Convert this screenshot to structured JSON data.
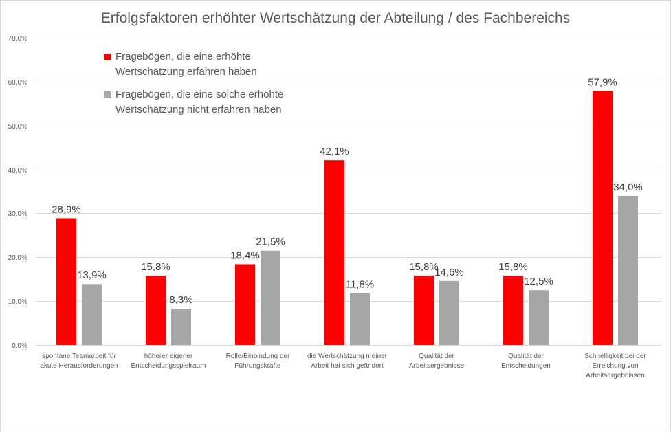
{
  "chart_data": {
    "type": "bar",
    "title": "Erfolgsfaktoren erhöhter Wertschätzung der Abteilung / des Fachbereichs",
    "xlabel": "",
    "ylabel": "",
    "ylim": [
      0,
      70
    ],
    "yticks": [
      0,
      10,
      20,
      30,
      40,
      50,
      60,
      70
    ],
    "ytick_labels": [
      "0,0%",
      "10,0%",
      "20,0%",
      "30,0%",
      "40,0%",
      "50,0%",
      "60,0%",
      "70,0%"
    ],
    "grid": true,
    "legend_position": "top-left",
    "categories": [
      [
        "spontane Teamarbeit für",
        "akute Herausforderungen"
      ],
      [
        "höherer eigener",
        "Entscheidungsspielraum"
      ],
      [
        "Rolle/Einbindung der",
        "Führungskräfte"
      ],
      [
        "die Wertschätzung meiner",
        "Arbeit hat sich geändert"
      ],
      [
        "Qualität der",
        "Arbeitsergebnisse"
      ],
      [
        "Qualität der",
        "Entscheidungen"
      ],
      [
        "Schnelligkeit bei der",
        "Erreichung von",
        "Arbeitsergebnissen"
      ]
    ],
    "series": [
      {
        "name": [
          "Fragebögen, die eine erhöhte",
          "Wertschätzung erfahren haben"
        ],
        "color": "#ff0000",
        "values": [
          28.9,
          15.8,
          18.4,
          42.1,
          15.8,
          15.8,
          57.9
        ],
        "labels": [
          "28,9%",
          "15,8%",
          "18,4%",
          "42,1%",
          "15,8%",
          "15,8%",
          "57,9%"
        ]
      },
      {
        "name": [
          "Fragebögen, die eine solche erhöhte",
          "Wertschätzung nicht erfahren haben"
        ],
        "color": "#a6a6a6",
        "values": [
          13.9,
          8.3,
          21.5,
          11.8,
          14.6,
          12.5,
          34.0
        ],
        "labels": [
          "13,9%",
          "8,3%",
          "21,5%",
          "11,8%",
          "14,6%",
          "12,5%",
          "34,0%"
        ]
      }
    ]
  }
}
